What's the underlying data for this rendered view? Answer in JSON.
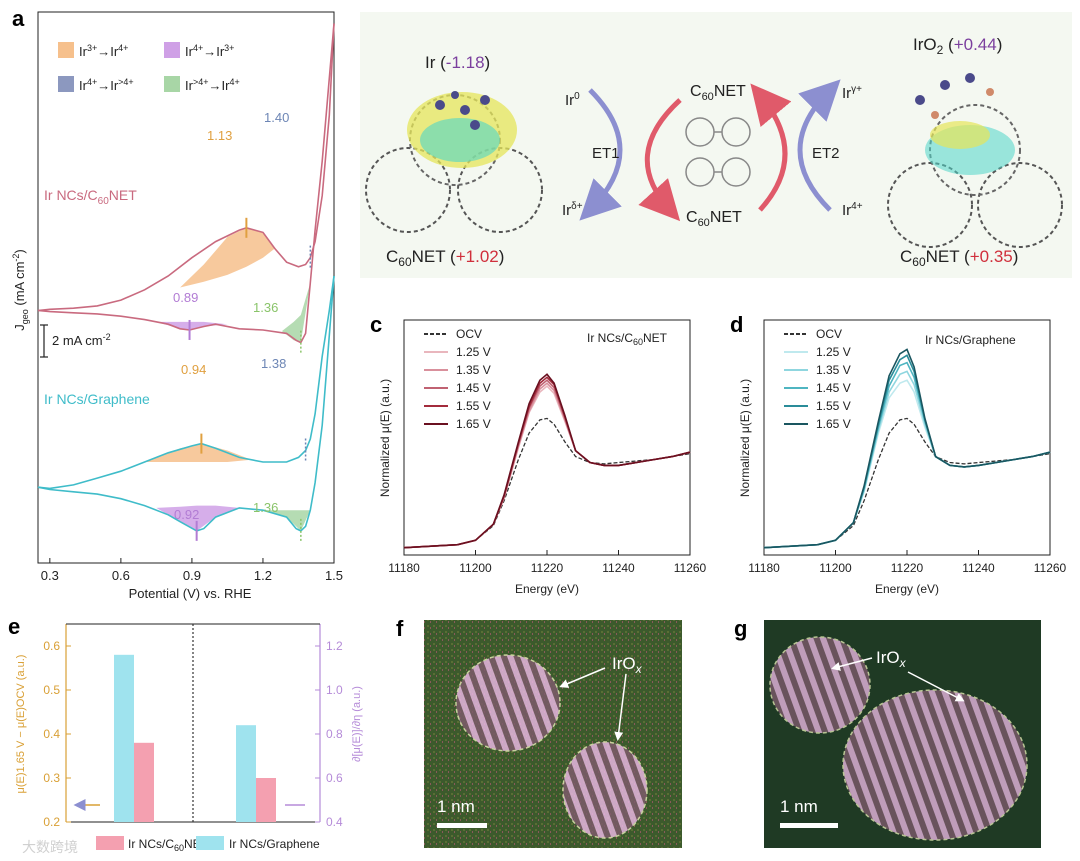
{
  "panel_labels": {
    "a": "a",
    "b": "b",
    "c": "c",
    "d": "d",
    "e": "e",
    "f": "f",
    "g": "g"
  },
  "colors": {
    "c60": "#c96a7f",
    "graphene": "#3fbcc9",
    "orange_fill": "#f6c08c",
    "purple_fill": "#cfa0e6",
    "green_fill": "#a8d6a6",
    "blue_legend": "#8c98bf",
    "orange_text": "#e0a040",
    "purple_text": "#b27cd4",
    "green_text": "#8ac46a",
    "blue_text": "#6d86b5",
    "red_value": "#d0303c",
    "purple_value": "#7b3f9e",
    "e_orange": "#d9a036",
    "e_purple": "#b58bd8",
    "e_pink": "#f4a0b0",
    "e_cyan": "#9fe3ee"
  },
  "panel_a": {
    "legend": {
      "l1_base": "Ir",
      "l1_s1": "3+",
      "l1_mid": "→Ir",
      "l1_s2": "4+",
      "l2_base": "Ir",
      "l2_s1": "4+",
      "l2_mid": "→Ir",
      "l2_s2": "3+",
      "l3_base": "Ir",
      "l3_s1": "4+",
      "l3_mid": "→Ir",
      "l3_s2": ">4+",
      "l4_base": "Ir",
      "l4_s1": ">4+",
      "l4_mid": "→Ir",
      "l4_s2": "4+"
    },
    "curve_label_c60_pre": "Ir NCs/C",
    "curve_label_c60_sub": "60",
    "curve_label_c60_post": "NET",
    "curve_label_gr": "Ir NCs/Graphene",
    "annotations": {
      "c60_ox1": "1.13",
      "c60_ox2": "1.40",
      "c60_red1": "0.89",
      "c60_red2": "1.36",
      "gr_ox1": "0.94",
      "gr_ox2": "1.38",
      "gr_red1": "0.92",
      "gr_red2": "1.36"
    },
    "ylabel_pre": "J",
    "ylabel_sub": "geo",
    "ylabel_post": " (mA cm",
    "ylabel_sup": "-2",
    "ylabel_end": ")",
    "scalebar_pre": "2 mA cm",
    "scalebar_sup": "-2",
    "xlabel": "Potential (V) vs. RHE",
    "xticks": [
      "0.3",
      "0.6",
      "0.9",
      "1.2",
      "1.5"
    ]
  },
  "panel_b": {
    "left_title_pre": "Ir (",
    "left_title_val": "-1.18",
    "left_title_post": ")",
    "left_bottom_pre": "C",
    "left_bottom_sub": "60",
    "left_bottom_mid": "NET (",
    "left_bottom_val": "+1.02",
    "left_bottom_post": ")",
    "right_title_pre": "IrO",
    "right_title_sub": "2",
    "right_title_mid": " (",
    "right_title_val": "+0.44",
    "right_title_post": ")",
    "right_bottom_pre": "C",
    "right_bottom_sub": "60",
    "right_bottom_mid": "NET (",
    "right_bottom_val": "+0.35",
    "right_bottom_post": ")",
    "et1": "ET1",
    "et2": "ET2",
    "ir0_base": "Ir",
    "ir0_sup": "0",
    "ird_base": "Ir",
    "ird_sup": "δ+",
    "irg_base": "Ir",
    "irg_sup": "γ+",
    "ir4_base": "Ir",
    "ir4_sup": "4+",
    "c60net_top_pre": "C",
    "c60net_top_sub": "60",
    "c60net_top_post": "NET",
    "c60net_bot_pre": "C",
    "c60net_bot_sub": "60",
    "c60net_bot_post": "NET"
  },
  "panel_c": {
    "title_pre": "Ir NCs/C",
    "title_sub": "60",
    "title_post": "NET",
    "legend": [
      "OCV",
      "1.25 V",
      "1.35 V",
      "1.45 V",
      "1.55 V",
      "1.65 V"
    ],
    "ylabel_pre": "Normalized ",
    "ylabel_mu": "μ",
    "ylabel_post": "(E) (a.u.)",
    "xlabel": "Energy (eV)",
    "xticks": [
      "11180",
      "11200",
      "11220",
      "11240",
      "11260"
    ]
  },
  "panel_d": {
    "title": "Ir NCs/Graphene",
    "legend": [
      "OCV",
      "1.25 V",
      "1.35 V",
      "1.45 V",
      "1.55 V",
      "1.65 V"
    ],
    "ylabel_pre": "Normalized ",
    "ylabel_mu": "μ",
    "ylabel_post": "(E) (a.u.)",
    "xlabel": "Energy (eV)",
    "xticks": [
      "11180",
      "11200",
      "11220",
      "11240",
      "11260"
    ]
  },
  "panel_e": {
    "yticks_left": [
      "0.2",
      "0.3",
      "0.4",
      "0.5",
      "0.6"
    ],
    "yticks_right": [
      "0.4",
      "0.6",
      "0.8",
      "1.0",
      "1.2"
    ],
    "ylabel_left": "μ(E)1.65 V − μ(E)OCV (a.u.)",
    "ylabel_right": "∂[μ(E)]/∂η (a.u.)",
    "legend_c60_pre": "Ir NCs/C",
    "legend_c60_sub": "60",
    "legend_c60_post": "NET",
    "legend_gr": "Ir NCs/Graphene",
    "watermark": "大数跨境"
  },
  "panel_f": {
    "label_base": "IrO",
    "label_sub": "x",
    "scale": "1 nm"
  },
  "panel_g": {
    "label_base": "IrO",
    "label_sub": "x",
    "scale": "1 nm"
  },
  "chart_data": [
    {
      "type": "line",
      "title": "a",
      "xlabel": "Potential (V) vs. RHE",
      "ylabel": "Jgeo (mA cm-2)",
      "xlim": [
        0.25,
        1.5
      ],
      "series": [
        {
          "name": "Ir NCs/C60NET",
          "x": [
            0.25,
            0.3,
            0.4,
            0.5,
            0.6,
            0.7,
            0.8,
            0.9,
            1.0,
            1.1,
            1.13,
            1.2,
            1.25,
            1.3,
            1.35,
            1.38,
            1.4,
            1.42,
            1.45,
            1.48,
            1.5
          ],
          "y": [
            0.0,
            0.05,
            0.1,
            0.2,
            0.45,
            0.9,
            1.5,
            2.3,
            3.0,
            3.5,
            3.6,
            3.4,
            2.7,
            2.1,
            1.9,
            2.0,
            2.3,
            3.0,
            5.0,
            8.5,
            12.5
          ]
        },
        {
          "name": "Ir NCs/C60NET (reverse)",
          "x": [
            1.5,
            1.45,
            1.42,
            1.4,
            1.38,
            1.36,
            1.34,
            1.3,
            1.2,
            1.1,
            1.0,
            0.95,
            0.89,
            0.85,
            0.8,
            0.7,
            0.6,
            0.5,
            0.4,
            0.3,
            0.25
          ],
          "y": [
            12.5,
            6.5,
            3.5,
            1.2,
            -1.0,
            -1.4,
            -1.3,
            -1.0,
            -0.85,
            -0.8,
            -0.6,
            -0.7,
            -0.85,
            -0.8,
            -0.6,
            -0.4,
            -0.25,
            -0.15,
            -0.1,
            -0.05,
            0.0
          ]
        },
        {
          "name": "Ir NCs/Graphene",
          "x": [
            0.25,
            0.3,
            0.4,
            0.5,
            0.6,
            0.7,
            0.8,
            0.9,
            0.94,
            1.0,
            1.1,
            1.2,
            1.3,
            1.35,
            1.38,
            1.4,
            1.42,
            1.45,
            1.48,
            1.5
          ],
          "y": [
            -7.7,
            -7.75,
            -7.6,
            -7.3,
            -7.0,
            -6.6,
            -6.2,
            -5.9,
            -5.8,
            -6.0,
            -6.4,
            -6.6,
            -6.6,
            -6.4,
            -6.1,
            -5.6,
            -4.5,
            -2.0,
            0.0,
            1.5
          ]
        },
        {
          "name": "Ir NCs/Graphene (reverse)",
          "x": [
            1.5,
            1.45,
            1.42,
            1.4,
            1.38,
            1.36,
            1.34,
            1.3,
            1.2,
            1.1,
            1.0,
            0.95,
            0.92,
            0.85,
            0.8,
            0.7,
            0.6,
            0.5,
            0.4,
            0.3,
            0.25
          ],
          "y": [
            1.5,
            -5.0,
            -7.5,
            -8.7,
            -9.4,
            -9.6,
            -9.5,
            -9.0,
            -8.7,
            -8.6,
            -9.0,
            -9.5,
            -9.6,
            -9.2,
            -8.9,
            -8.5,
            -8.2,
            -8.0,
            -7.9,
            -7.8,
            -7.7
          ]
        }
      ]
    },
    {
      "type": "line",
      "title": "Ir NCs/C60NET",
      "xlabel": "Energy (eV)",
      "ylabel": "Normalized μ(E) (a.u.)",
      "xlim": [
        11180,
        11260
      ],
      "x": [
        11180,
        11195,
        11200,
        11205,
        11208,
        11212,
        11215,
        11218,
        11220,
        11222,
        11225,
        11228,
        11232,
        11236,
        11240,
        11245,
        11250,
        11255,
        11260
      ],
      "series": [
        {
          "name": "OCV",
          "values": [
            0.0,
            0.02,
            0.05,
            0.15,
            0.32,
            0.6,
            0.78,
            0.87,
            0.88,
            0.84,
            0.72,
            0.62,
            0.58,
            0.57,
            0.58,
            0.59,
            0.6,
            0.62,
            0.64
          ]
        },
        {
          "name": "1.25 V",
          "values": [
            0.0,
            0.02,
            0.05,
            0.16,
            0.34,
            0.68,
            0.92,
            1.06,
            1.1,
            1.05,
            0.86,
            0.66,
            0.58,
            0.56,
            0.56,
            0.58,
            0.6,
            0.62,
            0.65
          ]
        },
        {
          "name": "1.35 V",
          "values": [
            0.0,
            0.02,
            0.05,
            0.16,
            0.34,
            0.69,
            0.93,
            1.08,
            1.12,
            1.07,
            0.87,
            0.66,
            0.58,
            0.56,
            0.56,
            0.58,
            0.6,
            0.62,
            0.65
          ]
        },
        {
          "name": "1.45 V",
          "values": [
            0.0,
            0.02,
            0.05,
            0.16,
            0.35,
            0.7,
            0.95,
            1.1,
            1.14,
            1.09,
            0.88,
            0.66,
            0.58,
            0.56,
            0.56,
            0.58,
            0.6,
            0.62,
            0.65
          ]
        },
        {
          "name": "1.55 V",
          "values": [
            0.0,
            0.02,
            0.05,
            0.16,
            0.35,
            0.71,
            0.96,
            1.12,
            1.16,
            1.11,
            0.89,
            0.66,
            0.58,
            0.56,
            0.56,
            0.58,
            0.6,
            0.62,
            0.65
          ]
        },
        {
          "name": "1.65 V",
          "values": [
            0.0,
            0.02,
            0.05,
            0.16,
            0.36,
            0.72,
            0.98,
            1.14,
            1.18,
            1.12,
            0.9,
            0.66,
            0.58,
            0.56,
            0.56,
            0.58,
            0.6,
            0.62,
            0.65
          ]
        }
      ]
    },
    {
      "type": "line",
      "title": "Ir NCs/Graphene",
      "xlabel": "Energy (eV)",
      "ylabel": "Normalized μ(E) (a.u.)",
      "xlim": [
        11180,
        11260
      ],
      "x": [
        11180,
        11195,
        11200,
        11205,
        11208,
        11212,
        11215,
        11218,
        11220,
        11222,
        11225,
        11228,
        11232,
        11236,
        11240,
        11245,
        11250,
        11255,
        11260
      ],
      "series": [
        {
          "name": "OCV",
          "values": [
            0.0,
            0.02,
            0.05,
            0.15,
            0.32,
            0.6,
            0.78,
            0.87,
            0.88,
            0.84,
            0.72,
            0.62,
            0.58,
            0.57,
            0.58,
            0.59,
            0.6,
            0.62,
            0.64
          ]
        },
        {
          "name": "1.25 V",
          "values": [
            0.0,
            0.02,
            0.05,
            0.17,
            0.38,
            0.78,
            1.02,
            1.12,
            1.14,
            1.06,
            0.82,
            0.62,
            0.56,
            0.55,
            0.56,
            0.58,
            0.6,
            0.62,
            0.65
          ]
        },
        {
          "name": "1.35 V",
          "values": [
            0.0,
            0.02,
            0.05,
            0.17,
            0.39,
            0.8,
            1.06,
            1.18,
            1.2,
            1.11,
            0.84,
            0.62,
            0.56,
            0.55,
            0.56,
            0.58,
            0.6,
            0.62,
            0.65
          ]
        },
        {
          "name": "1.45 V",
          "values": [
            0.0,
            0.02,
            0.05,
            0.17,
            0.4,
            0.82,
            1.1,
            1.24,
            1.26,
            1.16,
            0.86,
            0.62,
            0.56,
            0.55,
            0.56,
            0.58,
            0.6,
            0.62,
            0.65
          ]
        },
        {
          "name": "1.55 V",
          "values": [
            0.0,
            0.02,
            0.05,
            0.17,
            0.41,
            0.84,
            1.14,
            1.28,
            1.31,
            1.2,
            0.87,
            0.62,
            0.56,
            0.55,
            0.56,
            0.58,
            0.6,
            0.62,
            0.65
          ]
        },
        {
          "name": "1.65 V",
          "values": [
            0.0,
            0.02,
            0.05,
            0.17,
            0.42,
            0.86,
            1.17,
            1.32,
            1.35,
            1.23,
            0.88,
            0.62,
            0.56,
            0.55,
            0.56,
            0.58,
            0.6,
            0.62,
            0.65
          ]
        }
      ]
    },
    {
      "type": "bar",
      "title": "e",
      "categories": [
        "μ(E)1.65 V − μ(E)OCV",
        "∂[μ(E)]/∂η"
      ],
      "series": [
        {
          "name": "Ir NCs/C60NET",
          "values": [
            0.38,
            0.6
          ]
        },
        {
          "name": "Ir NCs/Graphene",
          "values": [
            0.58,
            0.84
          ]
        }
      ],
      "ylim_left": [
        0.2,
        0.65
      ],
      "ylim_right": [
        0.4,
        1.3
      ]
    }
  ]
}
